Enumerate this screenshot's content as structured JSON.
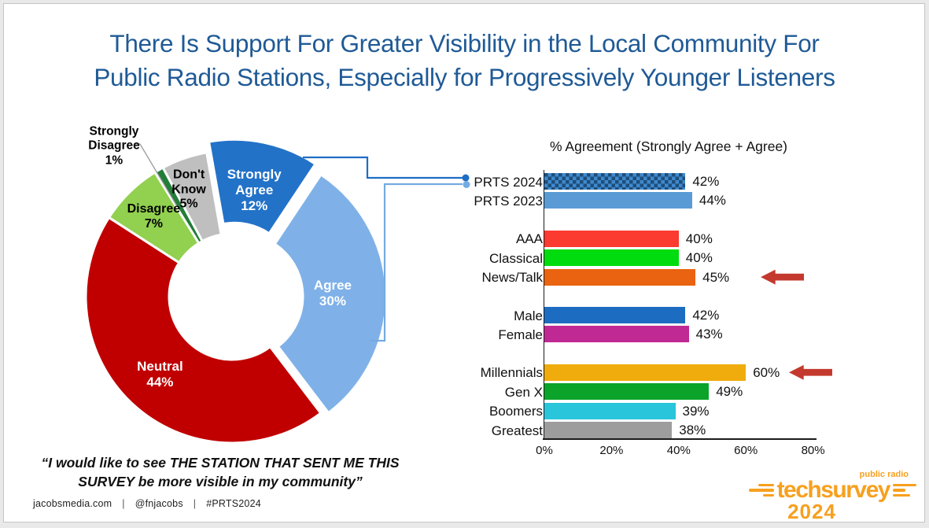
{
  "slide": {
    "title_line1": "There Is Support For Greater Visibility in the Local Community For",
    "title_line2": "Public Radio Stations, Especially for Progressively Younger Listeners",
    "quote_line1": "“I would like to see THE STATION THAT SENT ME THIS",
    "quote_line2": "SURVEY be more visible in my community”",
    "footer": {
      "items": [
        "jacobsmedia.com",
        "@fnjacobs",
        "#PRTS2024"
      ],
      "separator": "|"
    },
    "logo": {
      "tagline": "public radio",
      "brand": "techsurvey",
      "year": "2024",
      "color": "#F7A01E"
    }
  },
  "chart_data": [
    {
      "type": "pie",
      "subtype": "donut",
      "labels": [
        "Strongly Agree",
        "Agree",
        "Neutral",
        "Disagree",
        "Strongly Disagree",
        "Don't Know"
      ],
      "values": [
        12,
        30,
        44,
        7,
        1,
        5
      ],
      "unit": "%",
      "colors": [
        "#2272C8",
        "#7FB1E8",
        "#C00000",
        "#92D050",
        "#237D39",
        "#BFBFBF"
      ],
      "label_colors": [
        "#FFFFFF",
        "#FFFFFF",
        "#FFFFFF",
        "#000000",
        "#000000",
        "#000000"
      ],
      "start_angle_deg": -10,
      "exploded_slices": [
        "Strongly Agree",
        "Agree"
      ],
      "callouts_to": "PRTS 2024",
      "callout_colors": [
        "#1F6EC4",
        "#74ABE0"
      ]
    },
    {
      "type": "bar",
      "orientation": "horizontal",
      "title": "% Agreement (Strongly Agree + Agree)",
      "categories": [
        "PRTS 2024",
        "PRTS 2023",
        "AAA",
        "Classical",
        "News/Talk",
        "Male",
        "Female",
        "Millennials",
        "Gen X",
        "Boomers",
        "Greatest"
      ],
      "values": [
        42,
        44,
        40,
        40,
        45,
        42,
        43,
        60,
        49,
        39,
        38
      ],
      "value_suffix": "%",
      "colors": [
        "#1E4E79",
        "#5B9BD5",
        "#FB3A30",
        "#00DC0E",
        "#E96310",
        "#1C6DC1",
        "#C02994",
        "#EFAC0C",
        "#0BA32A",
        "#29C5DA",
        "#9D9D9D"
      ],
      "pattern_fill_category": "PRTS 2024",
      "pattern_colors": [
        "#1E4E79",
        "#3F89CE"
      ],
      "groups": [
        [
          "PRTS 2024",
          "PRTS 2023"
        ],
        [
          "AAA",
          "Classical",
          "News/Talk"
        ],
        [
          "Male",
          "Female"
        ],
        [
          "Millennials",
          "Gen X",
          "Boomers",
          "Greatest"
        ]
      ],
      "xlim": [
        0,
        80
      ],
      "tick_labels": [
        "0%",
        "20%",
        "40%",
        "60%",
        "80%"
      ],
      "highlight_arrows": [
        "News/Talk",
        "Millennials"
      ],
      "arrow_color": "#C4392D"
    }
  ]
}
